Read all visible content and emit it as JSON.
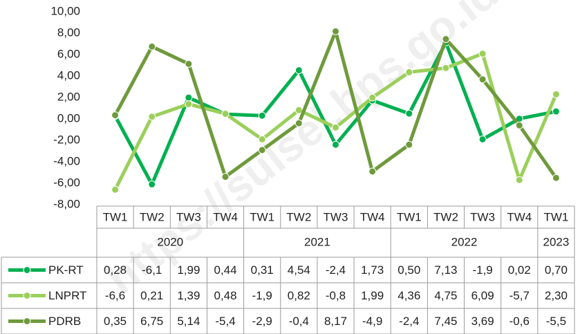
{
  "chart_data": {
    "type": "line",
    "watermark": "https://sulsel.bps.go.id",
    "categories": [
      "TW1",
      "TW2",
      "TW3",
      "TW4",
      "TW1",
      "TW2",
      "TW3",
      "TW4",
      "TW1",
      "TW2",
      "TW3",
      "TW4",
      "TW1"
    ],
    "groups": [
      {
        "label": "2020",
        "count": 4
      },
      {
        "label": "2021",
        "count": 4
      },
      {
        "label": "2022",
        "count": 4
      },
      {
        "label": "2023",
        "count": 1
      }
    ],
    "ylim": [
      -8,
      10
    ],
    "yticks": [
      {
        "value": -8,
        "label": "-8,00"
      },
      {
        "value": -6,
        "label": "-6,00"
      },
      {
        "value": -4,
        "label": "-4,00"
      },
      {
        "value": -2,
        "label": "-2,00"
      },
      {
        "value": 0,
        "label": "0,00"
      },
      {
        "value": 2,
        "label": "2,00"
      },
      {
        "value": 4,
        "label": "4,00"
      },
      {
        "value": 6,
        "label": "6,00"
      },
      {
        "value": 8,
        "label": "8,00"
      },
      {
        "value": 10,
        "label": "10,00"
      }
    ],
    "series": [
      {
        "name": "PK-RT",
        "color": "#00b050",
        "values": [
          0.28,
          -6.1,
          1.99,
          0.44,
          0.31,
          4.54,
          -2.4,
          1.73,
          0.5,
          7.13,
          -1.9,
          0.02,
          0.7
        ],
        "value_labels": [
          "0,28",
          "-6,1",
          "1,99",
          "0,44",
          "0,31",
          "4,54",
          "-2,4",
          "1,73",
          "0,50",
          "7,13",
          "-1,9",
          "0,02",
          "0,70"
        ]
      },
      {
        "name": "LNPRT",
        "color": "#9bcf5b",
        "values": [
          -6.6,
          0.21,
          1.39,
          0.48,
          -1.9,
          0.82,
          -0.8,
          1.99,
          4.36,
          4.75,
          6.09,
          -5.7,
          2.3
        ],
        "value_labels": [
          "-6,6",
          "0,21",
          "1,39",
          "0,48",
          "-1,9",
          "0,82",
          "-0,8",
          "1,99",
          "4,36",
          "4,75",
          "6,09",
          "-5,7",
          "2,30"
        ]
      },
      {
        "name": "PDRB",
        "color": "#6f9a3c",
        "values": [
          0.35,
          6.75,
          5.14,
          -5.4,
          -2.9,
          -0.4,
          8.17,
          -4.9,
          -2.4,
          7.45,
          3.69,
          -0.6,
          -5.5
        ],
        "value_labels": [
          "0,35",
          "6,75",
          "5,14",
          "-5,4",
          "-2,9",
          "-0,4",
          "8,17",
          "-4,9",
          "-2,4",
          "7,45",
          "3,69",
          "-0,6",
          "-5,5"
        ]
      }
    ]
  }
}
